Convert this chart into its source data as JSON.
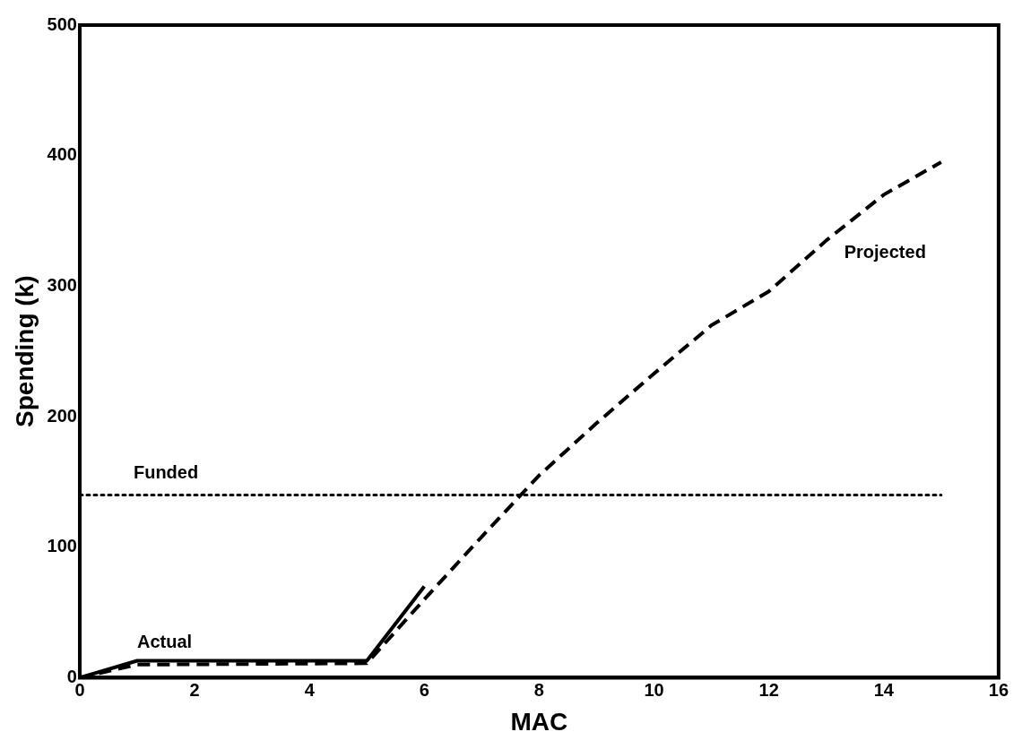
{
  "chart_data": {
    "type": "line",
    "xlabel": "MAC",
    "ylabel": "Spending (k)",
    "xlim": [
      0,
      16
    ],
    "xticks": [
      0,
      2,
      4,
      6,
      8,
      10,
      12,
      14,
      16
    ],
    "ylim": [
      0,
      500
    ],
    "yticks": [
      0,
      100,
      200,
      300,
      400,
      500
    ],
    "grid": false,
    "legend": false,
    "marker": "none",
    "series": [
      {
        "name": "Actual",
        "color": "#000000",
        "line_style": "solid",
        "x": [
          0,
          1,
          5,
          6
        ],
        "values": [
          0,
          13,
          13,
          70
        ]
      },
      {
        "name": "Projected",
        "color": "#000000",
        "line_style": "dashed",
        "x": [
          0,
          1,
          5,
          6,
          7,
          8,
          9,
          10,
          11,
          12,
          13,
          14,
          15
        ],
        "values": [
          0,
          10,
          11,
          60,
          108,
          155,
          195,
          233,
          270,
          296,
          335,
          370,
          395
        ]
      },
      {
        "name": "Funded",
        "color": "#000000",
        "line_style": "dotted",
        "x": [
          0,
          15
        ],
        "values": [
          140,
          140
        ]
      }
    ]
  }
}
